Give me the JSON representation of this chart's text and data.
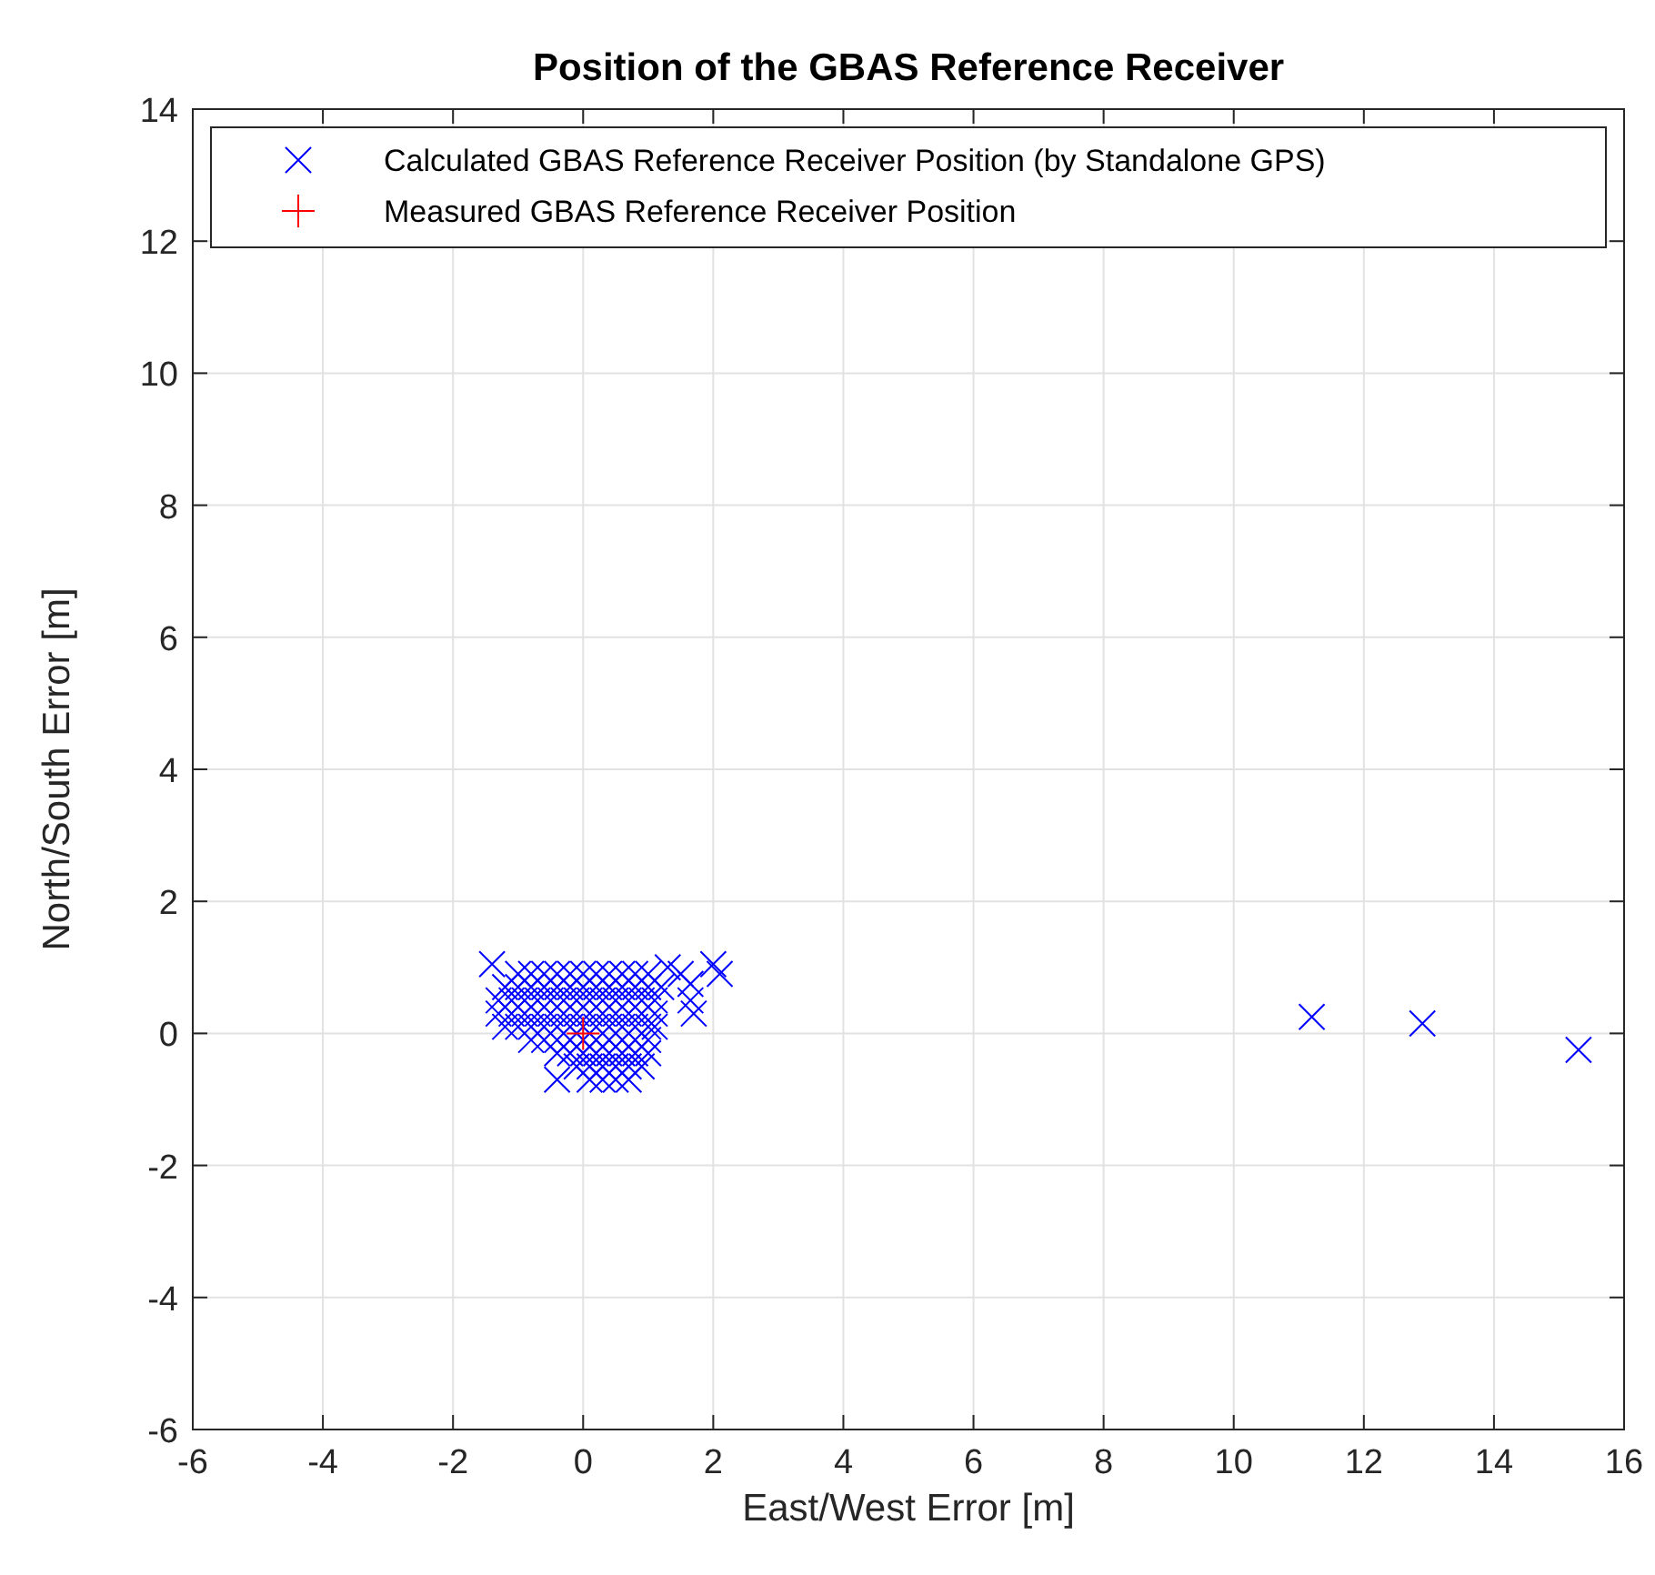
{
  "chart_data": {
    "type": "scatter",
    "title": "Position of the GBAS Reference Receiver",
    "xlabel": "East/West Error [m]",
    "ylabel": "North/South Error [m]",
    "xlim": [
      -6,
      16
    ],
    "xticks": [
      -6,
      -4,
      -2,
      0,
      2,
      4,
      6,
      8,
      10,
      12,
      14,
      16
    ],
    "ylim": [
      -6,
      14
    ],
    "yticks": [
      -6,
      -4,
      -2,
      0,
      2,
      4,
      6,
      8,
      10,
      12,
      14
    ],
    "grid": true,
    "legend": "top",
    "series": [
      {
        "name": "Calculated GBAS Reference Receiver Position (by Standalone GPS)",
        "color": "#0000ff",
        "marker": "cross",
        "x": [
          -1.0,
          -0.8,
          -0.6,
          -0.4,
          -0.2,
          0,
          0.2,
          0.4,
          0.6,
          0.8,
          1.0,
          -1.2,
          -1.0,
          -0.8,
          -0.6,
          -0.4,
          -0.2,
          0,
          0.2,
          0.4,
          0.6,
          0.8,
          1.0,
          1.2,
          -1.3,
          -1.1,
          -0.9,
          -0.7,
          -0.5,
          -0.3,
          -0.1,
          0.1,
          0.3,
          0.5,
          0.7,
          0.9,
          1.1,
          -1.3,
          -1.1,
          -0.9,
          -0.7,
          -0.5,
          -0.3,
          -0.1,
          0.1,
          0.3,
          0.5,
          0.7,
          0.9,
          1.1,
          -1.2,
          -1.0,
          -0.8,
          -0.6,
          -0.4,
          -0.2,
          0,
          0.2,
          0.4,
          0.6,
          0.8,
          1.0,
          1.1,
          -0.8,
          -0.6,
          -0.4,
          -0.2,
          0,
          0.2,
          0.4,
          0.6,
          0.8,
          1.0,
          -0.4,
          -0.2,
          0,
          0.2,
          0.4,
          0.6,
          0.8,
          1.0,
          -0.1,
          0.1,
          0.3,
          0.5,
          0.7,
          0.9,
          0.1,
          0.3,
          0.5,
          0.7,
          -1.4,
          1.3,
          1.5,
          1.65,
          1.65,
          1.7,
          2.0,
          2.1,
          -0.4,
          11.2,
          12.9,
          15.3
        ],
        "values": [
          0.9,
          0.9,
          0.9,
          0.9,
          0.9,
          0.9,
          0.9,
          0.9,
          0.9,
          0.9,
          0.9,
          0.7,
          0.7,
          0.7,
          0.7,
          0.7,
          0.7,
          0.7,
          0.7,
          0.7,
          0.7,
          0.7,
          0.7,
          0.7,
          0.5,
          0.5,
          0.5,
          0.5,
          0.5,
          0.5,
          0.5,
          0.5,
          0.5,
          0.5,
          0.5,
          0.5,
          0.5,
          0.3,
          0.3,
          0.3,
          0.3,
          0.3,
          0.3,
          0.3,
          0.3,
          0.3,
          0.3,
          0.3,
          0.3,
          0.3,
          0.1,
          0.1,
          0.1,
          0.1,
          0.1,
          0.1,
          0.1,
          0.1,
          0.1,
          0.1,
          0.1,
          0.1,
          0.1,
          -0.1,
          -0.1,
          -0.1,
          -0.1,
          -0.1,
          -0.1,
          -0.1,
          -0.1,
          -0.1,
          -0.1,
          -0.3,
          -0.3,
          -0.3,
          -0.3,
          -0.3,
          -0.3,
          -0.3,
          -0.3,
          -0.5,
          -0.5,
          -0.5,
          -0.5,
          -0.5,
          -0.5,
          -0.7,
          -0.7,
          -0.7,
          -0.7,
          1.05,
          1.0,
          0.9,
          0.75,
          0.5,
          0.3,
          1.05,
          0.9,
          -0.7,
          0.25,
          0.15,
          -0.25
        ]
      },
      {
        "name": "Measured GBAS Reference Receiver Position",
        "color": "#ff0000",
        "marker": "plus",
        "x": [
          0
        ],
        "values": [
          0
        ]
      }
    ]
  }
}
